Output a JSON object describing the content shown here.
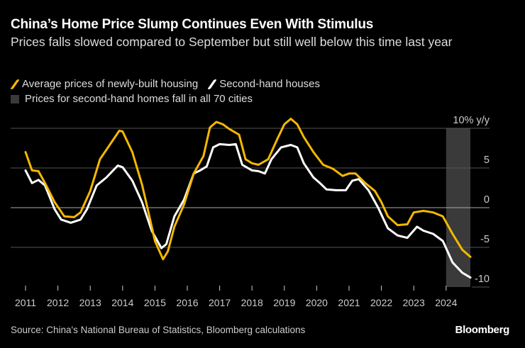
{
  "title": "China’s Home Price Slump Continues Even With Stimulus",
  "subtitle": "Prices falls slowed compared to September but still well below this time last year",
  "source": "Source: China's National Bureau of Statistics, Bloomberg calculations",
  "logo": "Bloomberg",
  "colors": {
    "background": "#000000",
    "new_homes": "#f5b800",
    "second_hand": "#ffffff",
    "shade": "#3a3a3a",
    "grid": "#555555"
  },
  "chart_data": {
    "type": "line",
    "title": "China’s Home Price Slump Continues Even With Stimulus",
    "xlabel": "",
    "ylabel": "% y/y",
    "ylim": [
      -10,
      10
    ],
    "xlim": [
      2011,
      2024.75
    ],
    "grid": true,
    "legend_placement": "top-left",
    "y_ticks": [
      {
        "value": 10,
        "label": "10% y/y"
      },
      {
        "value": 5,
        "label": "5"
      },
      {
        "value": 0,
        "label": "0"
      },
      {
        "value": -5,
        "label": "-5"
      },
      {
        "value": -10,
        "label": "-10"
      }
    ],
    "x_ticks": [
      "2011",
      "2012",
      "2013",
      "2014",
      "2015",
      "2016",
      "2017",
      "2018",
      "2019",
      "2020",
      "2021",
      "2022",
      "2023",
      "2024"
    ],
    "shaded_region": {
      "label": "Prices for second-hand homes fall in all 70 cities",
      "x": [
        2024.0,
        2024.75
      ]
    },
    "series": [
      {
        "name": "Average prices of newly-built housing",
        "color": "#f5b800",
        "x": [
          2011.0,
          2011.2,
          2011.4,
          2011.6,
          2011.9,
          2012.2,
          2012.5,
          2012.7,
          2013.0,
          2013.3,
          2013.6,
          2013.9,
          2014.0,
          2014.3,
          2014.6,
          2014.8,
          2015.0,
          2015.25,
          2015.4,
          2015.6,
          2015.9,
          2016.2,
          2016.5,
          2016.7,
          2016.9,
          2017.1,
          2017.3,
          2017.6,
          2017.8,
          2018.0,
          2018.2,
          2018.5,
          2018.8,
          2019.0,
          2019.2,
          2019.4,
          2019.6,
          2019.9,
          2020.2,
          2020.5,
          2020.8,
          2021.0,
          2021.2,
          2021.5,
          2021.8,
          2022.0,
          2022.2,
          2022.5,
          2022.8,
          2023.0,
          2023.3,
          2023.6,
          2023.9,
          2024.2,
          2024.5,
          2024.75
        ],
        "y": [
          7.0,
          4.7,
          4.6,
          3.1,
          0.7,
          -1.1,
          -1.2,
          -0.6,
          2.1,
          6.1,
          7.9,
          9.7,
          9.6,
          7.0,
          2.9,
          -0.6,
          -4.2,
          -6.5,
          -5.5,
          -2.4,
          0.4,
          4.3,
          6.5,
          10.1,
          10.8,
          10.5,
          9.9,
          9.2,
          6.1,
          5.6,
          5.4,
          6.1,
          8.8,
          10.5,
          11.2,
          10.5,
          8.9,
          7.0,
          5.4,
          4.9,
          4.0,
          4.3,
          4.3,
          3.1,
          2.1,
          0.7,
          -1.1,
          -2.2,
          -2.1,
          -0.6,
          -0.4,
          -0.6,
          -1.1,
          -3.3,
          -5.3,
          -6.2
        ]
      },
      {
        "name": "Second-hand houses",
        "color": "#ffffff",
        "x": [
          2011.0,
          2011.2,
          2011.4,
          2011.6,
          2011.9,
          2012.1,
          2012.4,
          2012.7,
          2012.9,
          2013.2,
          2013.5,
          2013.85,
          2014.0,
          2014.3,
          2014.6,
          2014.9,
          2015.2,
          2015.35,
          2015.6,
          2015.9,
          2016.2,
          2016.4,
          2016.6,
          2016.8,
          2017.0,
          2017.3,
          2017.5,
          2017.7,
          2018.0,
          2018.2,
          2018.4,
          2018.6,
          2018.9,
          2019.2,
          2019.4,
          2019.6,
          2019.9,
          2020.1,
          2020.3,
          2020.6,
          2020.9,
          2021.1,
          2021.3,
          2021.6,
          2021.9,
          2022.2,
          2022.5,
          2022.8,
          2023.1,
          2023.3,
          2023.6,
          2023.9,
          2024.2,
          2024.5,
          2024.75
        ],
        "y": [
          4.7,
          3.1,
          3.5,
          2.8,
          -0.2,
          -1.5,
          -1.9,
          -1.5,
          -0.2,
          2.8,
          3.8,
          5.3,
          5.1,
          3.4,
          0.7,
          -2.9,
          -5.1,
          -4.6,
          -1.1,
          1.0,
          4.3,
          4.7,
          5.2,
          7.6,
          8.0,
          7.9,
          8.0,
          5.4,
          4.7,
          4.6,
          4.3,
          6.1,
          7.6,
          7.9,
          7.6,
          5.6,
          3.8,
          3.1,
          2.3,
          2.2,
          2.2,
          3.4,
          3.6,
          2.2,
          0.0,
          -2.6,
          -3.5,
          -3.8,
          -2.4,
          -2.9,
          -3.3,
          -4.2,
          -6.9,
          -8.2,
          -8.8
        ]
      }
    ]
  }
}
